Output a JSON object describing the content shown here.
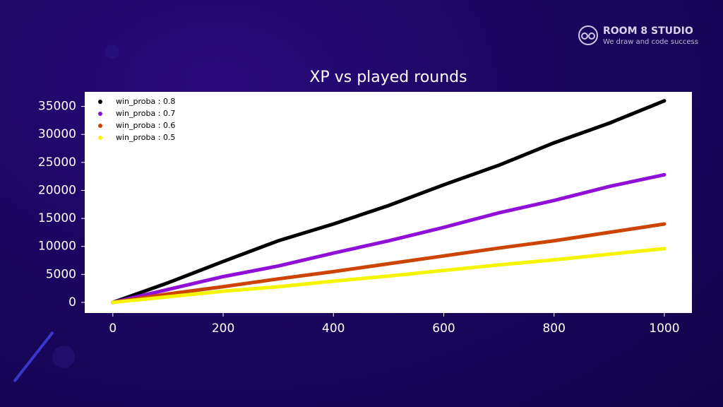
{
  "brand": {
    "name": "ROOM 8 STUDIO",
    "tagline": "We draw and code success"
  },
  "chart_data": {
    "type": "line",
    "title": "XP vs played rounds",
    "x": [
      0,
      100,
      200,
      300,
      400,
      500,
      600,
      700,
      800,
      900,
      1000
    ],
    "series": [
      {
        "name": "win_proba : 0.8",
        "color": "#000000",
        "values": [
          0,
          3500,
          7300,
          11000,
          14000,
          17300,
          21000,
          24500,
          28500,
          32000,
          36000
        ]
      },
      {
        "name": "win_proba : 0.7",
        "color": "#9010d8",
        "values": [
          0,
          2300,
          4600,
          6500,
          8800,
          11000,
          13400,
          16000,
          18200,
          20700,
          22800
        ]
      },
      {
        "name": "win_proba : 0.6",
        "color": "#cc4400",
        "values": [
          0,
          1500,
          2800,
          4200,
          5500,
          6900,
          8300,
          9700,
          11000,
          12500,
          14000
        ]
      },
      {
        "name": "win_proba : 0.5",
        "color": "#f5f500",
        "values": [
          0,
          1000,
          2000,
          2800,
          3800,
          4700,
          5700,
          6700,
          7600,
          8600,
          9600
        ]
      }
    ],
    "xlim": [
      -51,
      1050
    ],
    "ylim": [
      -1900,
      37600
    ],
    "xticks": [
      0,
      200,
      400,
      600,
      800,
      1000
    ],
    "yticks": [
      0,
      5000,
      10000,
      15000,
      20000,
      25000,
      30000,
      35000
    ],
    "legend": "upper left"
  }
}
